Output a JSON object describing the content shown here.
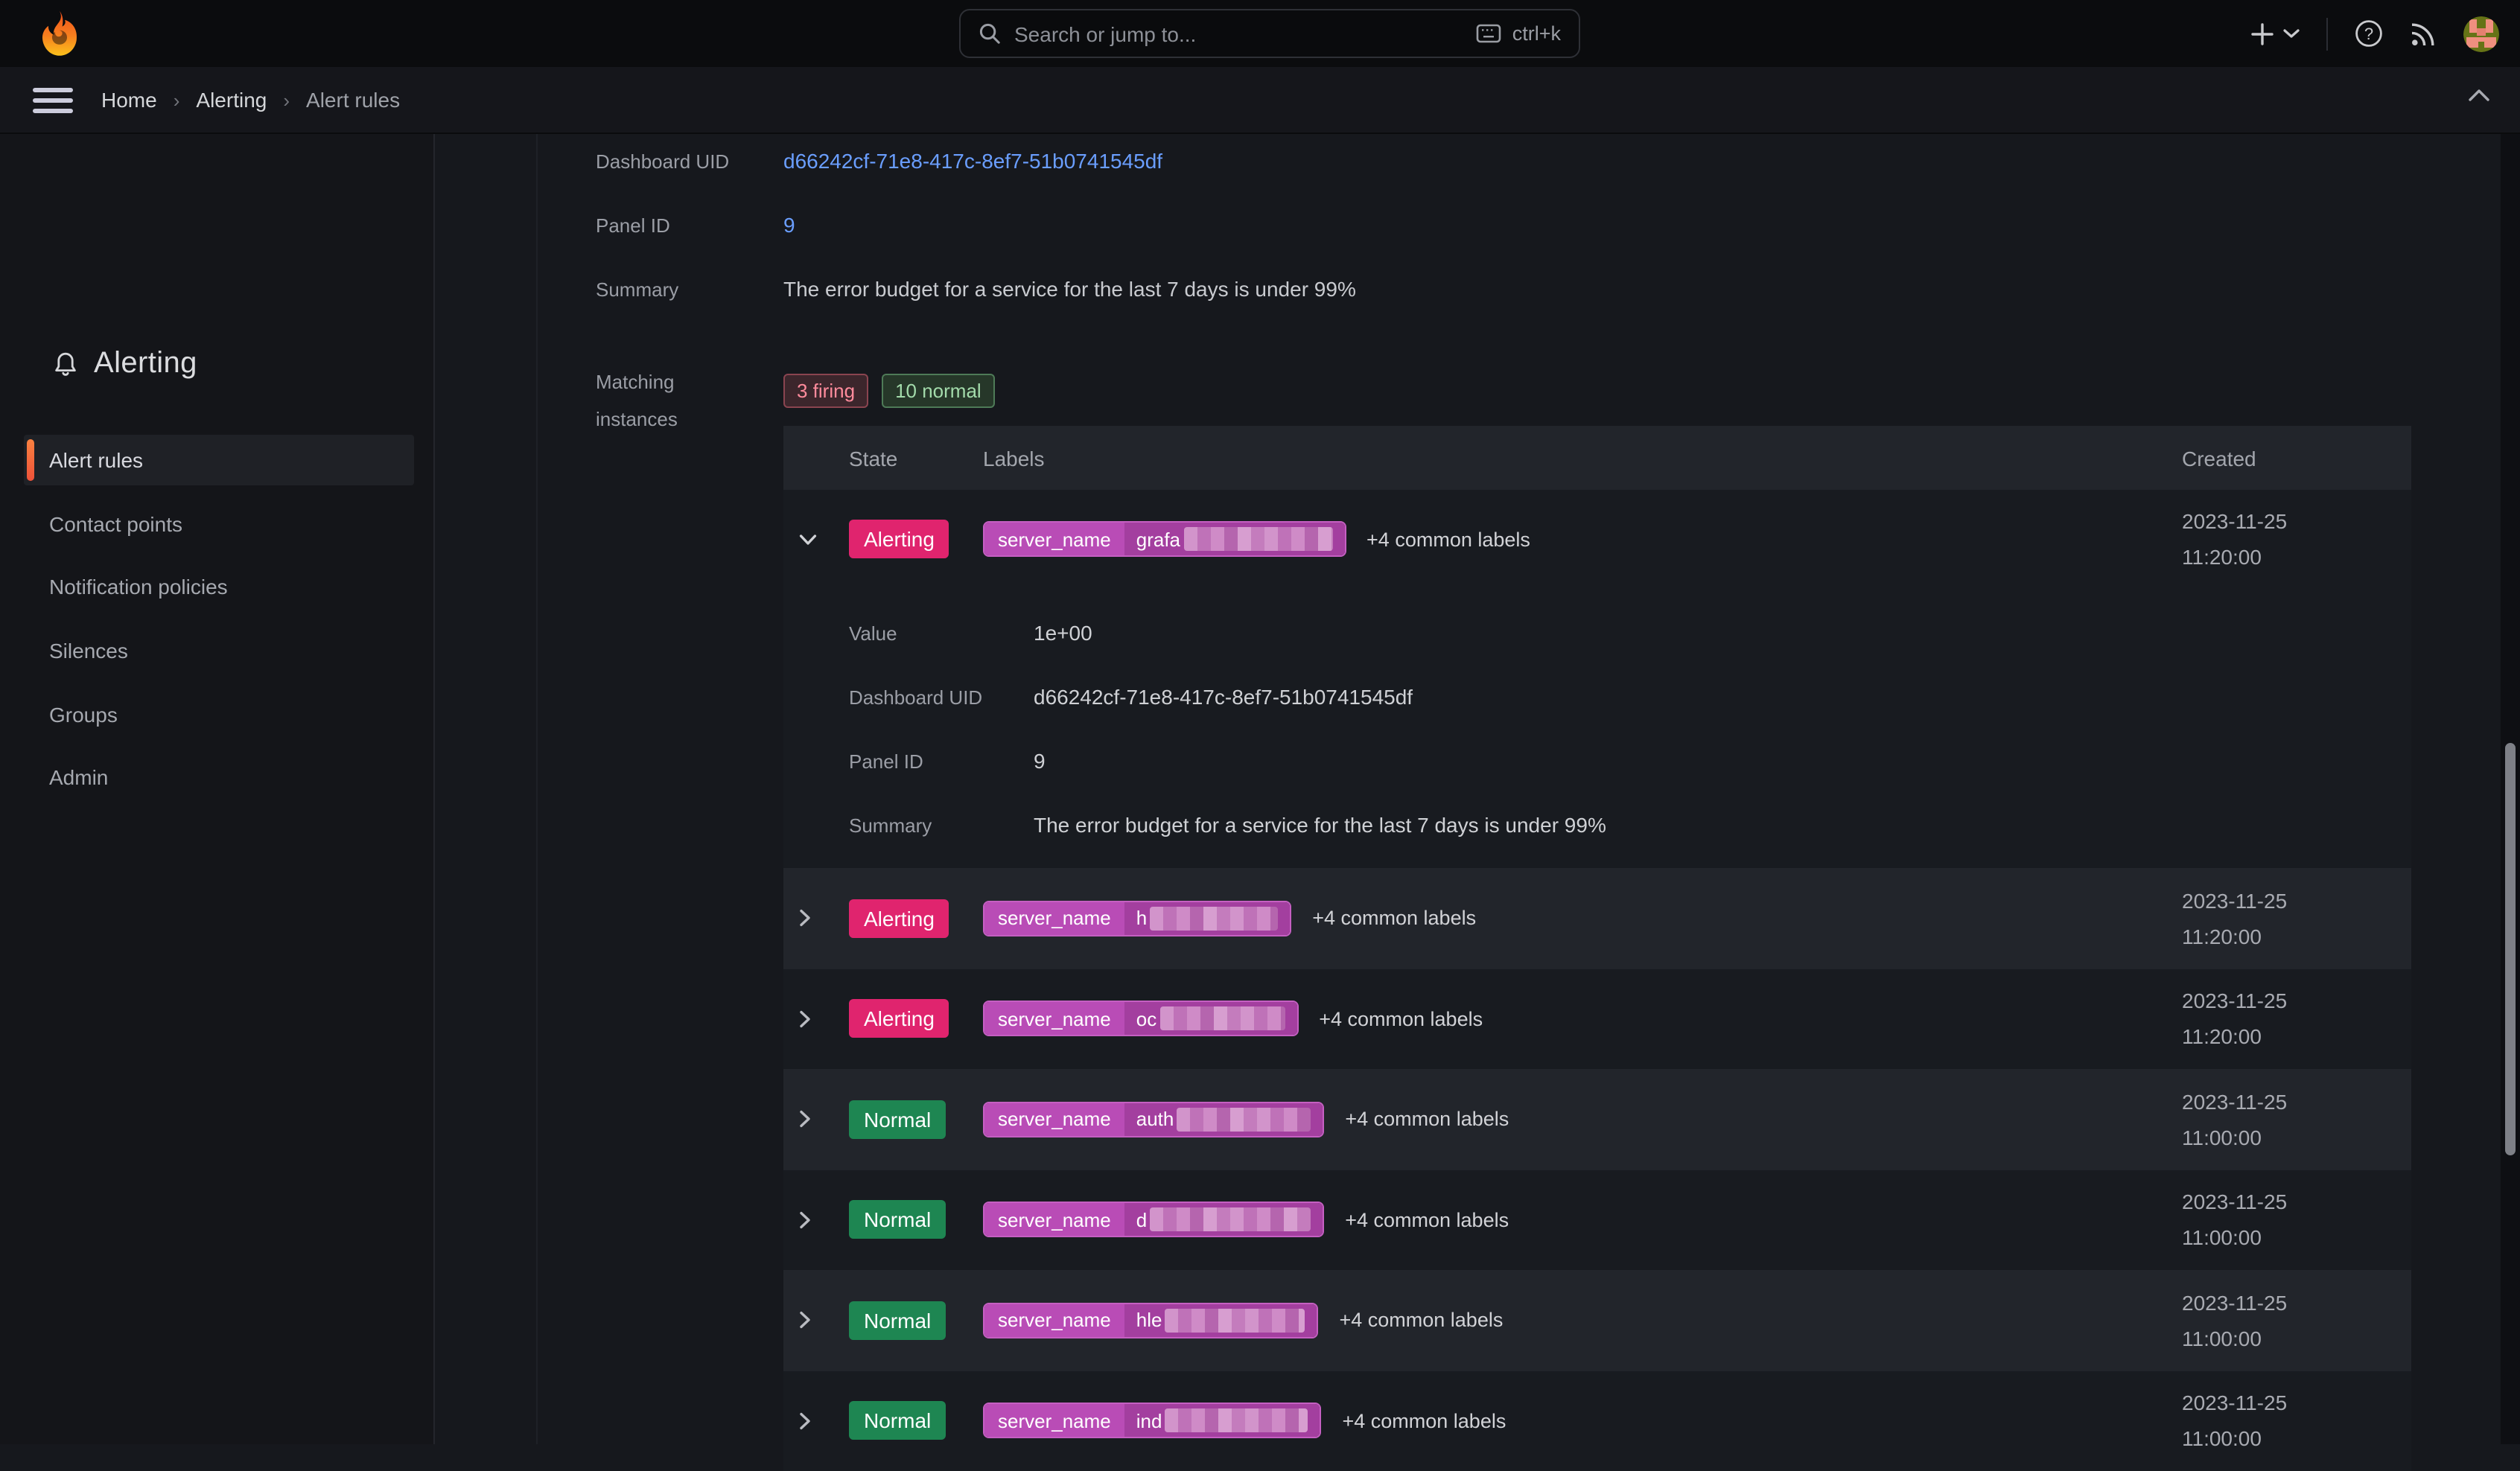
{
  "colors": {
    "canvas": "#16181d",
    "topbar": "#0b0c0e",
    "crumbbar": "#15161b",
    "sidebar": "#141519",
    "row_dark": "#181b20",
    "row_light": "#22252b",
    "link": "#6a9eff",
    "state_alerting": "#e0246e",
    "state_normal": "#1e8652",
    "label_key_bg": "#b94cb6",
    "label_value_bg": "#a33f9f",
    "label_border": "#c55fc2",
    "firing_badge_text": "#ff8b9c",
    "normal_badge_text": "#a3dbab",
    "accent_orange": "#f46a37"
  },
  "topbar": {
    "search_placeholder": "Search or jump to...",
    "shortcut": "ctrl+k"
  },
  "breadcrumb": {
    "separator": "›",
    "items": [
      "Home",
      "Alerting",
      "Alert rules"
    ]
  },
  "sidebar": {
    "title": "Alerting",
    "items": [
      {
        "label": "Alert rules",
        "active": true
      },
      {
        "label": "Contact points",
        "active": false
      },
      {
        "label": "Notification policies",
        "active": false
      },
      {
        "label": "Silences",
        "active": false
      },
      {
        "label": "Groups",
        "active": false
      },
      {
        "label": "Admin",
        "active": false
      }
    ]
  },
  "rule_details": {
    "fields": [
      {
        "label": "Dashboard UID",
        "value": "d66242cf-71e8-417c-8ef7-51b0741545df",
        "link": true
      },
      {
        "label": "Panel ID",
        "value": "9",
        "link": true
      },
      {
        "label": "Summary",
        "value": "The error budget for a service for the last 7 days is under 99%",
        "link": false
      }
    ],
    "matching_label": "Matching instances",
    "badges": [
      {
        "text": "3 firing",
        "kind": "firing"
      },
      {
        "text": "10 normal",
        "kind": "normal"
      }
    ]
  },
  "table": {
    "columns": [
      "State",
      "Labels",
      "Created"
    ],
    "rows": [
      {
        "state": "Alerting",
        "kind": "alerting",
        "expanded": true,
        "label_key": "server_name",
        "value_visible": "grafa",
        "blur_width": 100,
        "common_labels": "+4 common labels",
        "date": "2023-11-25",
        "time": "11:20:00",
        "details": [
          {
            "label": "Value",
            "value": "1e+00",
            "link": false
          },
          {
            "label": "Dashboard UID",
            "value": "d66242cf-71e8-417c-8ef7-51b0741545df",
            "link": true
          },
          {
            "label": "Panel ID",
            "value": "9",
            "link": true
          },
          {
            "label": "Summary",
            "value": "The error budget for a service for the last 7 days is under 99%",
            "link": false
          }
        ]
      },
      {
        "state": "Alerting",
        "kind": "alerting",
        "expanded": false,
        "label_key": "server_name",
        "value_visible": "h",
        "blur_width": 86,
        "common_labels": "+4 common labels",
        "date": "2023-11-25",
        "time": "11:20:00"
      },
      {
        "state": "Alerting",
        "kind": "alerting",
        "expanded": false,
        "label_key": "server_name",
        "value_visible": "oc",
        "blur_width": 84,
        "common_labels": "+4 common labels",
        "date": "2023-11-25",
        "time": "11:20:00"
      },
      {
        "state": "Normal",
        "kind": "normal",
        "expanded": false,
        "label_key": "server_name",
        "value_visible": "auth",
        "blur_width": 90,
        "common_labels": "+4 common labels",
        "date": "2023-11-25",
        "time": "11:00:00"
      },
      {
        "state": "Normal",
        "kind": "normal",
        "expanded": false,
        "label_key": "server_name",
        "value_visible": "d",
        "blur_width": 108,
        "common_labels": "+4 common labels",
        "date": "2023-11-25",
        "time": "11:00:00"
      },
      {
        "state": "Normal",
        "kind": "normal",
        "expanded": false,
        "label_key": "server_name",
        "value_visible": "hle",
        "blur_width": 94,
        "common_labels": "+4 common labels",
        "date": "2023-11-25",
        "time": "11:00:00"
      },
      {
        "state": "Normal",
        "kind": "normal",
        "expanded": false,
        "label_key": "server_name",
        "value_visible": "ind",
        "blur_width": 96,
        "common_labels": "+4 common labels",
        "date": "2023-11-25",
        "time": "11:00:00"
      }
    ]
  }
}
